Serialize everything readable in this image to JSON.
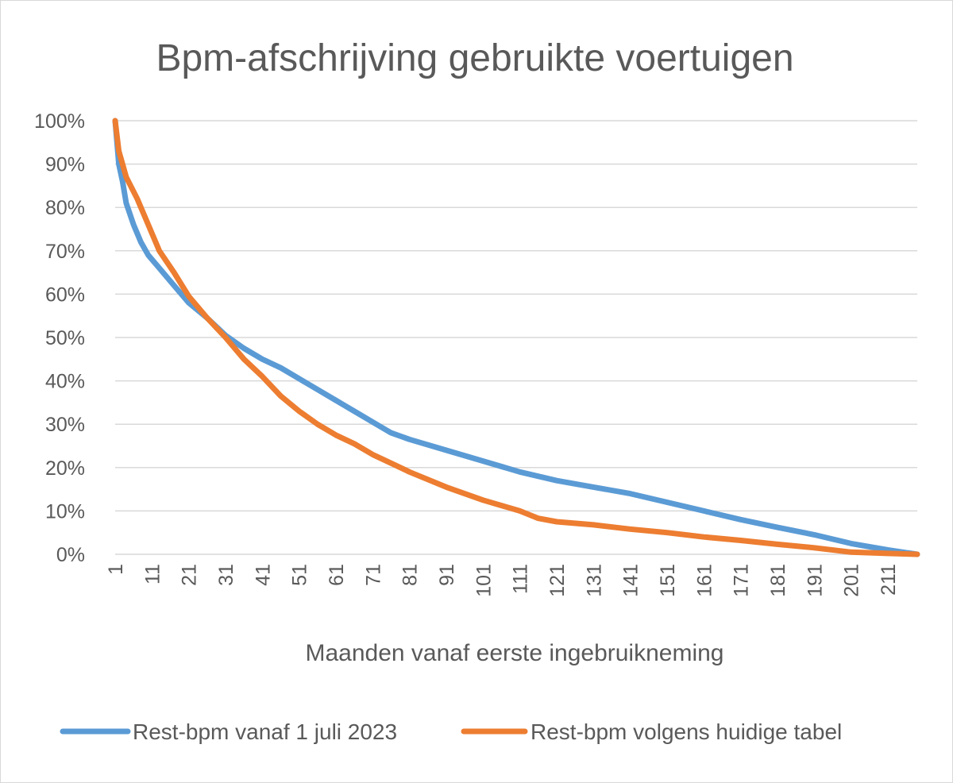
{
  "chart_data": {
    "type": "line",
    "title": "Bpm-afschrijving gebruikte voertuigen",
    "xlabel": "Maanden vanaf eerste ingebruikneming",
    "ylabel": "",
    "ylim": [
      0,
      1
    ],
    "y_tick_labels": [
      "0%",
      "10%",
      "20%",
      "30%",
      "40%",
      "50%",
      "60%",
      "70%",
      "80%",
      "90%",
      "100%"
    ],
    "x_tick_labels": [
      "1",
      "11",
      "21",
      "31",
      "41",
      "51",
      "61",
      "71",
      "81",
      "91",
      "101",
      "111",
      "121",
      "131",
      "141",
      "151",
      "161",
      "171",
      "181",
      "191",
      "201",
      "211"
    ],
    "xlim": [
      1,
      219
    ],
    "grid": true,
    "legend_position": "bottom",
    "series": [
      {
        "name": "Rest-bpm vanaf 1 juli 2023",
        "color": "#5b9bd5",
        "x": [
          1,
          2,
          3,
          4,
          6,
          8,
          10,
          13,
          17,
          21,
          26,
          31,
          36,
          41,
          46,
          51,
          56,
          61,
          66,
          71,
          76,
          81,
          91,
          101,
          111,
          121,
          131,
          141,
          151,
          161,
          171,
          181,
          191,
          201,
          211,
          219
        ],
        "y": [
          1.0,
          0.9,
          0.86,
          0.81,
          0.76,
          0.72,
          0.69,
          0.66,
          0.62,
          0.58,
          0.545,
          0.505,
          0.475,
          0.45,
          0.43,
          0.405,
          0.38,
          0.355,
          0.33,
          0.305,
          0.28,
          0.265,
          0.24,
          0.215,
          0.19,
          0.17,
          0.155,
          0.14,
          0.12,
          0.1,
          0.08,
          0.062,
          0.045,
          0.025,
          0.01,
          0.0
        ]
      },
      {
        "name": "Rest-bpm volgens huidige tabel",
        "color": "#ed7d31",
        "x": [
          1,
          2,
          3,
          4,
          7,
          10,
          13,
          17,
          21,
          26,
          31,
          36,
          41,
          46,
          51,
          56,
          61,
          66,
          71,
          76,
          81,
          91,
          101,
          111,
          116,
          121,
          131,
          141,
          151,
          161,
          171,
          181,
          191,
          201,
          211,
          219
        ],
        "y": [
          1.0,
          0.93,
          0.9,
          0.87,
          0.82,
          0.76,
          0.7,
          0.65,
          0.595,
          0.545,
          0.5,
          0.45,
          0.41,
          0.365,
          0.33,
          0.3,
          0.275,
          0.255,
          0.23,
          0.21,
          0.19,
          0.155,
          0.125,
          0.1,
          0.083,
          0.075,
          0.068,
          0.058,
          0.05,
          0.04,
          0.032,
          0.023,
          0.015,
          0.005,
          0.002,
          0.0
        ]
      }
    ]
  }
}
